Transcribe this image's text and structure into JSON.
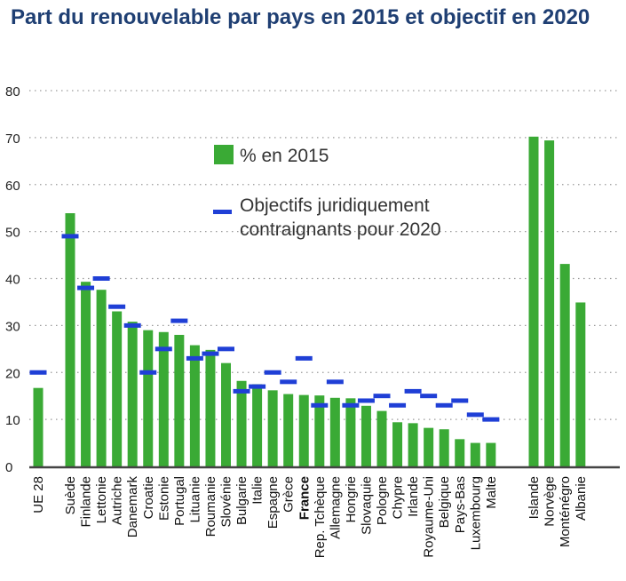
{
  "chart_data": {
    "type": "bar",
    "title": "Part du renouvelable par pays en 2015 et objectif en 2020",
    "xlabel": "",
    "ylabel": "",
    "ylim": [
      0,
      80
    ],
    "yticks": [
      0,
      10,
      20,
      30,
      40,
      50,
      60,
      70,
      80
    ],
    "grid": "horizontal dotted",
    "legend_position": "center",
    "colors": {
      "bar": "#3aaa35",
      "target": "#1f3fd6",
      "axis": "#444444",
      "title": "#1f3f73"
    },
    "categories": [
      "UE 28",
      "Suède",
      "Finlande",
      "Lettonie",
      "Autriche",
      "Danemark",
      "Croatie",
      "Estonie",
      "Portugal",
      "Lituanie",
      "Roumanie",
      "Slovénie",
      "Bulgarie",
      "Italie",
      "Espagne",
      "Grèce",
      "France",
      "Rep. Tchèque",
      "Allemagne",
      "Hongrie",
      "Slovaquie",
      "Pologne",
      "Chypre",
      "Irlande",
      "Royaume-Uni",
      "Belgique",
      "Pays-Bas",
      "Luxembourg",
      "Malte",
      "Islande",
      "Norvège",
      "Monténégro",
      "Albanie"
    ],
    "emphasized_category": "France",
    "series": [
      {
        "name": "% en 2015",
        "kind": "bar",
        "values": [
          16.7,
          53.9,
          39.3,
          37.6,
          33.0,
          30.8,
          29.0,
          28.6,
          28.0,
          25.8,
          24.8,
          22.0,
          18.2,
          17.5,
          16.2,
          15.4,
          15.2,
          15.1,
          14.6,
          14.5,
          12.9,
          11.8,
          9.4,
          9.2,
          8.2,
          7.9,
          5.8,
          5.0,
          5.0,
          70.2,
          69.4,
          43.1,
          34.9
        ]
      },
      {
        "name": "Objectifs juridiquement contraignants pour 2020",
        "kind": "marker",
        "values": [
          20,
          49,
          38,
          40,
          34,
          30,
          20,
          25,
          31,
          23,
          24,
          25,
          16,
          17,
          20,
          18,
          23,
          13,
          18,
          13,
          14,
          15,
          13,
          16,
          15,
          13,
          14,
          11,
          10,
          null,
          null,
          null,
          null
        ]
      }
    ],
    "legend": {
      "entry_bar": "% en 2015",
      "entry_marker_line1": "Objectifs juridiquement",
      "entry_marker_line2": "contraignants pour 2020"
    }
  }
}
